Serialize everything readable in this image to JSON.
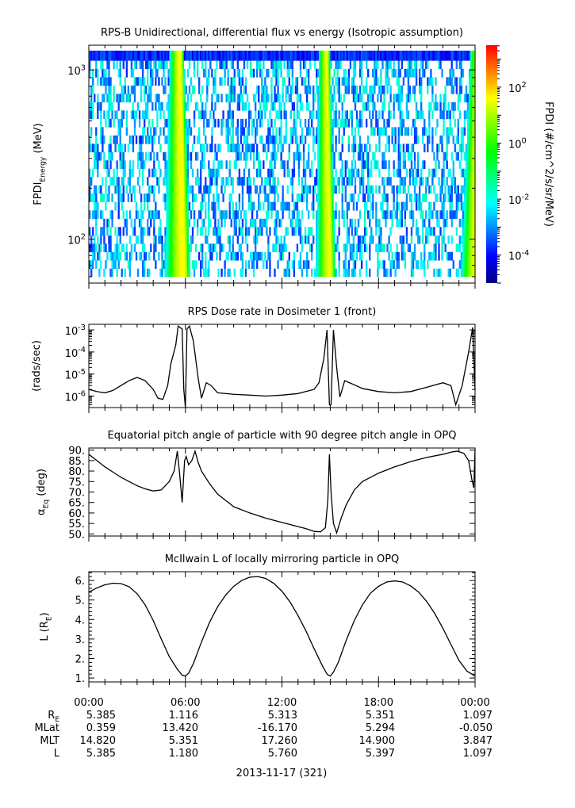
{
  "chart_data": [
    {
      "type": "heatmap",
      "title": "RPS-B  Unidirectional, differential flux vs energy (Isotropic assumption)",
      "ylabel_main": "FPDI",
      "ylabel_sub": "Energy",
      "ylabel_unit": " (MeV)",
      "yscale": "log",
      "ylim": [
        55,
        1400
      ],
      "y_ticks": [
        {
          "value": 100,
          "base": "10",
          "exp": "2"
        },
        {
          "value": 1000,
          "base": "10",
          "exp": "3"
        }
      ],
      "energy_edges": [
        60,
        67,
        75,
        84,
        94,
        105,
        118,
        132,
        148,
        166,
        186,
        208,
        233,
        261,
        292,
        327,
        366,
        410,
        459,
        514,
        576,
        645,
        722,
        809,
        906,
        1015,
        1137,
        1300
      ],
      "xlim_hours": [
        0,
        24
      ],
      "flux_bands": [
        {
          "center_hours": 5.9,
          "half_width_low": 1.2,
          "half_width_high": 0.4,
          "peak_log": 1.6
        },
        {
          "center_hours": 15.0,
          "half_width_low": 0.9,
          "half_width_high": 0.35,
          "peak_log": 1.5
        },
        {
          "center_hours": 24.0,
          "half_width_low": 0.9,
          "half_width_high": 0.5,
          "peak_log": 1.4
        }
      ],
      "colorbar": {
        "label": "FPDI (#/cm^2/s/sr/MeV)",
        "scale": "log",
        "range_log": [
          -5,
          3.5
        ],
        "ticks": [
          {
            "value_log": 2,
            "base": "10",
            "exp": "2"
          },
          {
            "value_log": 0,
            "base": "10",
            "exp": "0"
          },
          {
            "value_log": -2,
            "base": "10",
            "exp": "-2"
          },
          {
            "value_log": -4,
            "base": "10",
            "exp": "-4"
          }
        ],
        "colors": [
          "#000080",
          "#0000ff",
          "#0080ff",
          "#00ffff",
          "#00ff80",
          "#00ff00",
          "#80ff00",
          "#ffff00",
          "#ff8000",
          "#ff0000"
        ]
      }
    },
    {
      "type": "line",
      "title": "RPS  Dose rate in Dosimeter 1 (front)",
      "ylabel": "(rads/sec)",
      "yscale": "log",
      "ylim": [
        3e-07,
        0.0018
      ],
      "y_ticks": [
        {
          "value": 1e-06,
          "base": "10",
          "exp": "-6"
        },
        {
          "value": 1e-05,
          "base": "10",
          "exp": "-5"
        },
        {
          "value": 0.0001,
          "base": "10",
          "exp": "-4"
        },
        {
          "value": 0.001,
          "base": "10",
          "exp": "-3"
        }
      ],
      "x_hours": [
        0,
        0.5,
        1,
        1.5,
        2,
        2.5,
        3,
        3.5,
        4,
        4.3,
        4.6,
        4.9,
        5.1,
        5.4,
        5.55,
        5.8,
        5.9,
        6.0,
        6.1,
        6.25,
        6.5,
        6.8,
        7.0,
        7.3,
        7.6,
        8,
        9,
        10,
        11,
        12,
        13,
        14,
        14.3,
        14.6,
        14.8,
        14.95,
        15.05,
        15.2,
        15.4,
        15.6,
        15.9,
        16.2,
        16.6,
        17,
        18,
        19,
        20,
        21,
        22,
        22.5,
        22.8,
        23.2,
        23.6,
        23.85,
        24
      ],
      "values": [
        2e-06,
        1.6e-06,
        1.4e-06,
        1.8e-06,
        3e-06,
        5e-06,
        7e-06,
        5e-06,
        2e-06,
        8e-07,
        7e-07,
        3e-06,
        3e-05,
        0.0002,
        0.0015,
        0.0011,
        2e-06,
        3e-07,
        0.0011,
        0.0015,
        0.0003,
        6e-06,
        8e-07,
        4e-06,
        3e-06,
        1.4e-06,
        1.2e-06,
        1.1e-06,
        1e-06,
        1.1e-06,
        1.3e-06,
        2e-06,
        4e-06,
        5e-05,
        0.001,
        4e-07,
        4e-07,
        0.001,
        2e-05,
        9e-07,
        5e-06,
        4e-06,
        3e-06,
        2.2e-06,
        1.6e-06,
        1.4e-06,
        1.6e-06,
        2.5e-06,
        4e-06,
        3e-06,
        4e-07,
        3e-06,
        0.0001,
        0.0013,
        1.8e-06
      ]
    },
    {
      "type": "line",
      "title": "Equatorial pitch angle of particle with 90 degree pitch angle in OPQ",
      "ylabel_main": "α",
      "ylabel_sub": "Eq",
      "ylabel_unit": " (deg)",
      "ylim": [
        49,
        91
      ],
      "y_ticks": [
        "50.",
        "55.",
        "60.",
        "65.",
        "70.",
        "75.",
        "80.",
        "85.",
        "90."
      ],
      "y_tick_values": [
        50,
        55,
        60,
        65,
        70,
        75,
        80,
        85,
        90
      ],
      "x_hours": [
        0,
        0.5,
        1,
        1.5,
        2,
        2.5,
        3,
        3.5,
        4,
        4.5,
        5,
        5.3,
        5.5,
        5.65,
        5.8,
        5.95,
        6.05,
        6.2,
        6.4,
        6.6,
        6.8,
        7,
        7.5,
        8,
        9,
        10,
        11,
        12,
        13,
        13.5,
        14,
        14.4,
        14.7,
        14.85,
        14.95,
        15.05,
        15.2,
        15.4,
        15.7,
        16,
        16.5,
        17,
        18,
        19,
        20,
        21,
        22,
        22.5,
        22.9,
        23.3,
        23.6,
        23.8,
        23.92,
        24
      ],
      "values": [
        88,
        85,
        82,
        79.5,
        77,
        75,
        73,
        71.5,
        70.5,
        71,
        75,
        80,
        89.5,
        78,
        65,
        85,
        87,
        83,
        85,
        89.5,
        84,
        80,
        74,
        69,
        63,
        60,
        57.5,
        55.5,
        53.5,
        52.5,
        51.2,
        51,
        53,
        66,
        88,
        70,
        55,
        50.5,
        58,
        64,
        71,
        75,
        79,
        82,
        84.5,
        86.5,
        88,
        89,
        89.5,
        88.5,
        85,
        76,
        72,
        90
      ]
    },
    {
      "type": "line",
      "title": "McIlwain L of locally mirroring particle in OPQ",
      "ylabel_main": "L (R",
      "ylabel_sub": "E",
      "ylabel_unit": ")",
      "ylim": [
        0.8,
        6.45
      ],
      "y_ticks": [
        "1.",
        "2.",
        "3.",
        "4.",
        "5.",
        "6."
      ],
      "y_tick_values": [
        1,
        2,
        3,
        4,
        5,
        6
      ],
      "x_hours": [
        0,
        0.5,
        1,
        1.5,
        2,
        2.5,
        3,
        3.5,
        4,
        4.5,
        5,
        5.5,
        5.8,
        6.0,
        6.2,
        6.5,
        7,
        7.5,
        8,
        8.5,
        9,
        9.5,
        10,
        10.5,
        11,
        11.5,
        12,
        12.5,
        13,
        13.5,
        14,
        14.5,
        14.8,
        15.0,
        15.2,
        15.5,
        16,
        16.5,
        17,
        17.5,
        18,
        18.5,
        19,
        19.5,
        20,
        20.5,
        21,
        21.5,
        22,
        22.5,
        23,
        23.5,
        24
      ],
      "values": [
        5.4,
        5.62,
        5.78,
        5.86,
        5.84,
        5.68,
        5.32,
        4.75,
        3.95,
        3.0,
        2.1,
        1.45,
        1.15,
        1.1,
        1.25,
        1.75,
        2.85,
        3.85,
        4.65,
        5.25,
        5.7,
        6.0,
        6.17,
        6.2,
        6.1,
        5.85,
        5.45,
        4.9,
        4.2,
        3.4,
        2.5,
        1.65,
        1.2,
        1.1,
        1.3,
        1.8,
        2.95,
        3.95,
        4.75,
        5.35,
        5.7,
        5.92,
        5.98,
        5.92,
        5.72,
        5.4,
        4.92,
        4.3,
        3.55,
        2.72,
        1.9,
        1.35,
        1.1
      ]
    }
  ],
  "x_axis": {
    "tick_labels": [
      "00:00",
      "06:00",
      "12:00",
      "18:00",
      "00:00"
    ],
    "tick_hours": [
      0,
      6,
      12,
      18,
      24
    ],
    "date_label": "2013-11-17 (321)"
  },
  "ephemeris": {
    "rows": [
      {
        "label": "R",
        "label_sub": "E",
        "values": [
          "5.385",
          "1.116",
          "5.313",
          "5.351",
          "1.097"
        ]
      },
      {
        "label": "MLat",
        "label_sub": "",
        "values": [
          "0.359",
          "13.420",
          "-16.170",
          "5.294",
          "-0.050"
        ]
      },
      {
        "label": "MLT",
        "label_sub": "",
        "values": [
          "14.820",
          "5.351",
          "17.260",
          "14.900",
          "3.847"
        ]
      },
      {
        "label": "L",
        "label_sub": "",
        "values": [
          "5.385",
          "1.180",
          "5.760",
          "5.397",
          "1.097"
        ]
      }
    ]
  }
}
